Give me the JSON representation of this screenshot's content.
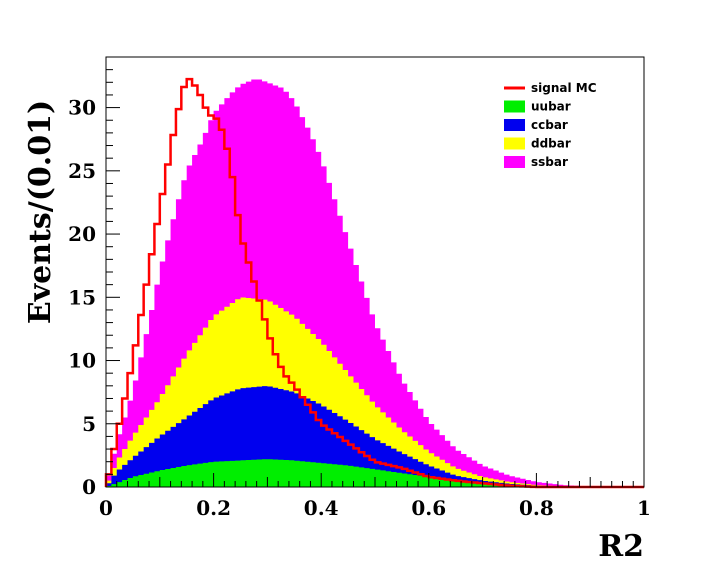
{
  "chart_data": {
    "type": "area",
    "title": "",
    "xlabel": "R2",
    "ylabel": "Events/(0.01)",
    "xlim": [
      0,
      1
    ],
    "ylim": [
      0,
      34
    ],
    "grid": false,
    "legend_position": "top-right",
    "x_ticks": [
      "0",
      "0.2",
      "0.4",
      "0.6",
      "0.8",
      "1"
    ],
    "y_ticks": [
      "0",
      "5",
      "10",
      "15",
      "20",
      "25",
      "30"
    ],
    "bin_width": 0.01,
    "stack_order": [
      "uubar",
      "ccbar",
      "ddbar",
      "ssbar"
    ],
    "series": [
      {
        "name": "signal MC",
        "style": "step-line",
        "color": "#ff0000",
        "x": [
          0.0,
          0.05,
          0.1,
          0.13,
          0.15,
          0.17,
          0.19,
          0.21,
          0.23,
          0.25,
          0.27,
          0.29,
          0.31,
          0.33,
          0.35,
          0.4,
          0.45,
          0.5,
          0.55,
          0.6,
          0.65,
          0.7,
          0.75,
          0.8
        ],
        "values": [
          0,
          10,
          22,
          29,
          32.5,
          31.5,
          29.5,
          29,
          26,
          20,
          17,
          14,
          11,
          9,
          8,
          5,
          3.5,
          2,
          1.5,
          0.8,
          0.5,
          0.3,
          0.1,
          0
        ]
      },
      {
        "name": "uubar",
        "style": "stacked-fill",
        "color": "#00ee00",
        "x": [
          0.0,
          0.02,
          0.05,
          0.1,
          0.15,
          0.2,
          0.25,
          0.3,
          0.35,
          0.4,
          0.45,
          0.5,
          0.55,
          0.6,
          0.65,
          0.7,
          0.75,
          0.8,
          0.85,
          0.9
        ],
        "values": [
          0,
          0.3,
          0.8,
          1.3,
          1.7,
          2.0,
          2.1,
          2.2,
          2.1,
          1.9,
          1.7,
          1.4,
          1.1,
          0.8,
          0.5,
          0.3,
          0.15,
          0.05,
          0.02,
          0
        ]
      },
      {
        "name": "ccbar",
        "style": "stacked-fill",
        "color": "#0000ee",
        "x": [
          0.0,
          0.02,
          0.05,
          0.1,
          0.15,
          0.2,
          0.25,
          0.3,
          0.35,
          0.4,
          0.45,
          0.5,
          0.55,
          0.6,
          0.65,
          0.7,
          0.75,
          0.8,
          0.85,
          0.9
        ],
        "values": [
          0,
          1.2,
          2.3,
          4.0,
          5.5,
          7.0,
          7.8,
          8.0,
          7.5,
          6.5,
          5.2,
          3.8,
          2.7,
          1.7,
          0.9,
          0.5,
          0.25,
          0.1,
          0.03,
          0
        ]
      },
      {
        "name": "ddbar",
        "style": "stacked-fill",
        "color": "#ffff00",
        "x": [
          0.0,
          0.02,
          0.05,
          0.1,
          0.15,
          0.2,
          0.25,
          0.3,
          0.35,
          0.4,
          0.45,
          0.5,
          0.55,
          0.6,
          0.65,
          0.7,
          0.75,
          0.8,
          0.85,
          0.9
        ],
        "values": [
          0,
          2.0,
          4.0,
          7.0,
          10.5,
          13.5,
          15.0,
          14.8,
          13.5,
          11.5,
          9.0,
          6.5,
          4.5,
          2.8,
          1.5,
          0.8,
          0.4,
          0.15,
          0.05,
          0
        ]
      },
      {
        "name": "ssbar",
        "style": "stacked-fill",
        "color": "#ff00ff",
        "x": [
          0.0,
          0.02,
          0.05,
          0.08,
          0.1,
          0.13,
          0.15,
          0.18,
          0.2,
          0.23,
          0.25,
          0.28,
          0.3,
          0.33,
          0.35,
          0.38,
          0.4,
          0.45,
          0.5,
          0.55,
          0.6,
          0.65,
          0.7,
          0.75,
          0.8,
          0.85,
          0.9,
          0.95,
          1.0
        ],
        "values": [
          0,
          3.5,
          7.5,
          13.0,
          17.0,
          22.0,
          25.0,
          27.5,
          29.5,
          31.0,
          31.8,
          32.3,
          32.0,
          31.5,
          30.5,
          28.0,
          26.0,
          19.5,
          13.0,
          8.5,
          5.2,
          3.0,
          1.7,
          0.9,
          0.4,
          0.15,
          0.05,
          0.02,
          0
        ]
      }
    ]
  }
}
